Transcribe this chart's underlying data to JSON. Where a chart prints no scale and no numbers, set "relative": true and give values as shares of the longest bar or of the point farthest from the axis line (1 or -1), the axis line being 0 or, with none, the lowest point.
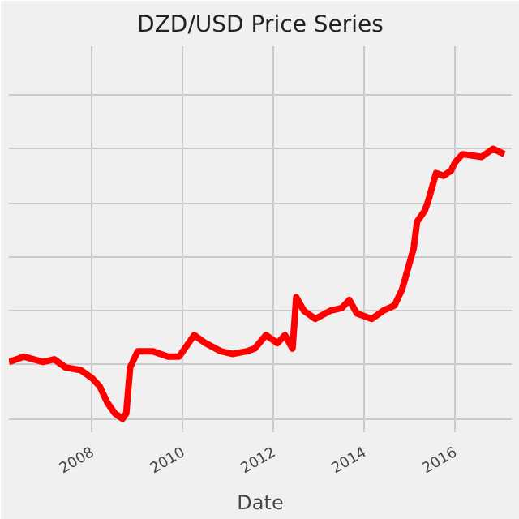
{
  "chart_data": {
    "type": "line",
    "title": "DZD/USD Price Series",
    "xlabel": "Date",
    "relative": true,
    "grid": true,
    "line_style": "solid",
    "x": [
      "2006-03",
      "2006-07",
      "2006-12",
      "2007-03",
      "2007-06",
      "2007-10",
      "2008-01",
      "2008-03",
      "2008-05",
      "2008-07",
      "2008-09",
      "2008-10",
      "2008-11",
      "2009-01",
      "2009-05",
      "2009-09",
      "2009-12",
      "2010-04",
      "2010-07",
      "2010-11",
      "2011-02",
      "2011-06",
      "2011-08",
      "2011-11",
      "2012-02",
      "2012-04",
      "2012-06",
      "2012-07",
      "2012-09",
      "2012-12",
      "2013-04",
      "2013-07",
      "2013-09",
      "2013-11",
      "2014-03",
      "2014-06",
      "2014-09",
      "2014-11",
      "2015-01",
      "2015-02",
      "2015-03",
      "2015-05",
      "2015-06",
      "2015-07",
      "2015-08",
      "2015-10",
      "2015-12",
      "2016-01",
      "2016-03",
      "2016-08",
      "2016-11",
      "2017-02"
    ],
    "series": [
      {
        "color": "#ff0000",
        "values": [
          0.21,
          0.23,
          0.21,
          0.22,
          0.19,
          0.18,
          0.15,
          0.12,
          0.06,
          0.02,
          0,
          0.02,
          0.19,
          0.25,
          0.25,
          0.23,
          0.23,
          0.31,
          0.28,
          0.25,
          0.24,
          0.25,
          0.26,
          0.31,
          0.28,
          0.31,
          0.26,
          0.45,
          0.4,
          0.37,
          0.4,
          0.41,
          0.44,
          0.39,
          0.37,
          0.4,
          0.42,
          0.48,
          0.58,
          0.63,
          0.73,
          0.77,
          0.81,
          0.86,
          0.91,
          0.9,
          0.92,
          0.95,
          0.98,
          0.97,
          1.0,
          0.98
        ]
      }
    ],
    "xlim": [
      "2006-03",
      "2017-04"
    ],
    "xticks": [
      {
        "value": "2008",
        "label": "2008"
      },
      {
        "value": "2010",
        "label": "2010"
      },
      {
        "value": "2012",
        "label": "2012"
      },
      {
        "value": "2014",
        "label": "2014"
      },
      {
        "value": "2016",
        "label": "2016"
      }
    ]
  }
}
